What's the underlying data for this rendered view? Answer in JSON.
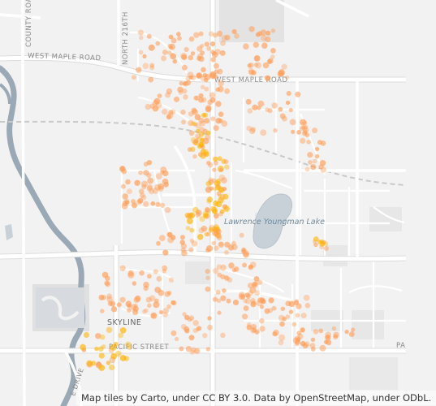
{
  "map": {
    "colors": {
      "background": "#f2f2f2",
      "road": "#ffffff",
      "road_casing": "#dcdcdc",
      "water": "#9aa9b5",
      "water_fill": "#c9d1d8",
      "block": "#e6e6e6",
      "rail": "#c8c8c8",
      "point": "#ff9d57",
      "point_dense": "#ffb200"
    },
    "labels": {
      "west_maple_road_left": "WEST MAPLE ROAD",
      "west_maple_road_right": "WEST MAPLE ROAD",
      "county_road": "COUNTY ROAD",
      "north_216th": "NORTH 216TH",
      "lake": "Lawrence Youngman Lake",
      "skyline": "SKYLINE",
      "pacific_street": "PACIFIC STREET",
      "drive": "E DRIVE",
      "edge_right": "PA"
    },
    "attribution": "Map tiles by Carto, under CC BY 3.0. Data by OpenStreetMap, under ODbL."
  }
}
